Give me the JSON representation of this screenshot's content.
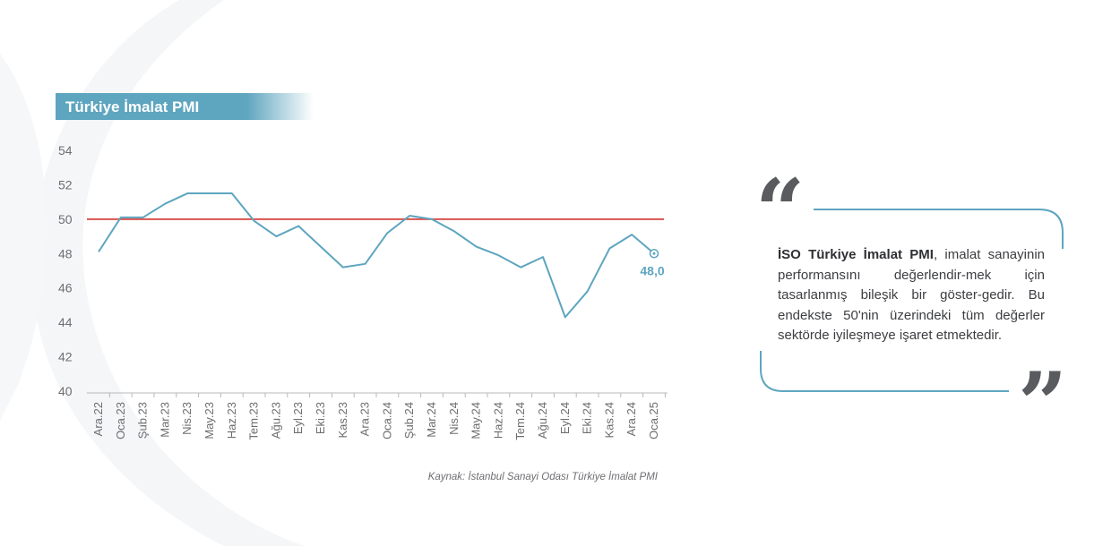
{
  "title": "Türkiye İmalat PMI",
  "source": "Kaynak: İstanbul Sanayi Odası Türkiye İmalat PMI",
  "quote": {
    "bold": "İSO Türkiye İmalat PMI",
    "text": ", imalat sanayinin performansını değerlendir-mek için tasarlanmış bileşik bir göster-gedir. Bu endekste 50'nin üzerindeki tüm değerler sektörde iyileşmeye işaret etmektedir."
  },
  "colors": {
    "line": "#5ea5bf",
    "threshold": "#d9534f",
    "axis": "#b8b8b8",
    "tick_text": "#6d6e71",
    "quote_frame": "#5ea5bf"
  },
  "chart_data": {
    "type": "line",
    "title": "Türkiye İmalat PMI",
    "categories": [
      "Ara.22",
      "Oca.23",
      "Şub.23",
      "Mar.23",
      "Nis.23",
      "May.23",
      "Haz.23",
      "Tem.23",
      "Ağu.23",
      "Eyl.23",
      "Eki.23",
      "Kas.23",
      "Ara.23",
      "Oca.24",
      "Şub.24",
      "Mar.24",
      "Nis.24",
      "May.24",
      "Haz.24",
      "Tem.24",
      "Ağu.24",
      "Eyl.24",
      "Eki.24",
      "Kas.24",
      "Ara.24",
      "Oca.25"
    ],
    "values": [
      48.1,
      50.1,
      50.1,
      50.9,
      51.5,
      51.5,
      51.5,
      49.9,
      49.0,
      49.6,
      48.4,
      47.2,
      47.4,
      49.2,
      50.2,
      50.0,
      49.3,
      48.4,
      47.9,
      47.2,
      47.8,
      44.3,
      45.8,
      48.3,
      49.1,
      48.0
    ],
    "threshold": 50,
    "ylim": [
      40,
      54
    ],
    "yticks": [
      40,
      42,
      44,
      46,
      48,
      50,
      52,
      54
    ],
    "last_label": "48,0",
    "grid": false
  }
}
